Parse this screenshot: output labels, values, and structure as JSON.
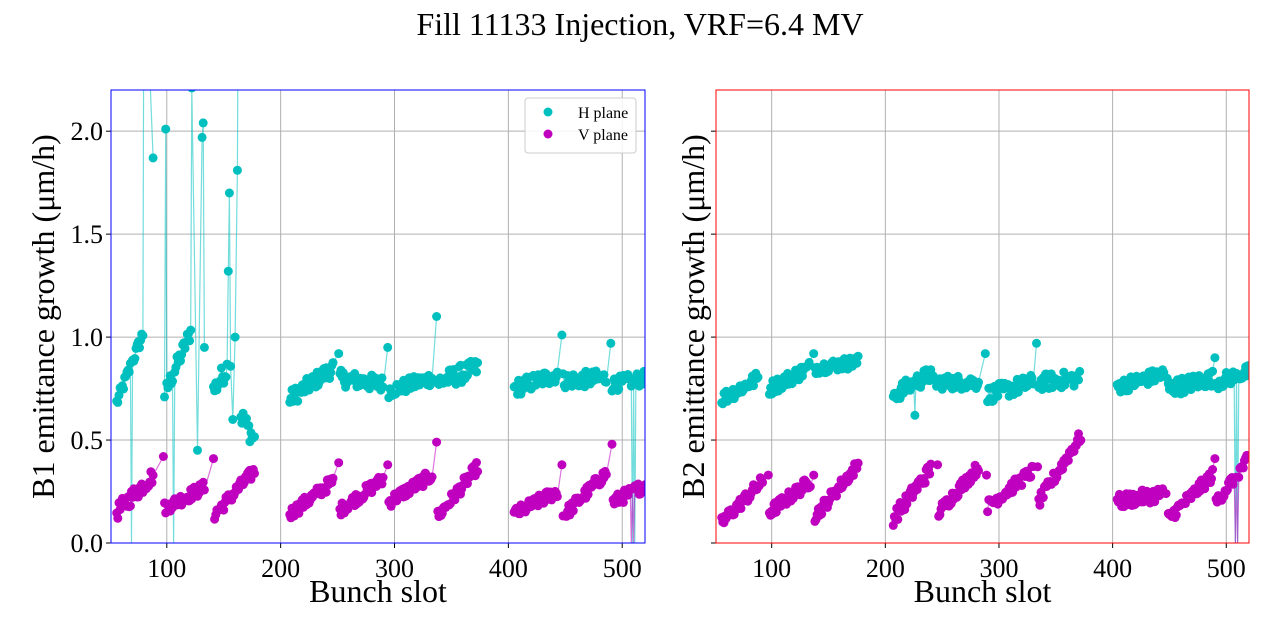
{
  "chart_data": {
    "title": "Fill 11133 Injection, VRF=6.4 MV",
    "panels": [
      {
        "id": "b1",
        "type": "line",
        "xlabel": "Bunch slot",
        "ylabel": "B1 emittance growth (μm/h)",
        "xlim": [
          51,
          520
        ],
        "ylim": [
          0.0,
          2.2
        ],
        "xticks": [
          100,
          200,
          300,
          400,
          500
        ],
        "yticks": [
          0.0,
          0.5,
          1.0,
          1.5,
          2.0
        ],
        "ytick_labels": [
          "0.0",
          "0.5",
          "1.0",
          "1.5",
          "2.0"
        ],
        "show_ytick_labels": true,
        "grid": true,
        "frame_color": "#0000ff",
        "legend": {
          "position": "top-right",
          "entries": [
            "H plane",
            "V plane"
          ]
        },
        "series": [
          {
            "name": "H plane",
            "color": "#00bfbf",
            "trains": [
              {
                "start": 56,
                "end": 80,
                "v0": 0.68,
                "v1": 1.03,
                "noise": 0.03,
                "spikes": [
                  [
                    69,
                    0.0
                  ],
                  [
                    80,
                    3.0
                  ],
                  [
                    88,
                    1.87
                  ]
                ]
              },
              {
                "start": 98,
                "end": 122,
                "v0": 0.72,
                "v1": 1.04,
                "noise": 0.04,
                "spikes": [
                  [
                    99,
                    2.01
                  ],
                  [
                    106,
                    0.0
                  ],
                  [
                    122,
                    2.21
                  ],
                  [
                    127,
                    0.45
                  ],
                  [
                    131,
                    1.97
                  ],
                  [
                    132,
                    2.04
                  ],
                  [
                    133,
                    0.95
                  ]
                ]
              },
              {
                "start": 141,
                "end": 156,
                "v0": 0.74,
                "v1": 0.88,
                "noise": 0.05,
                "spikes": [
                  [
                    154,
                    1.32
                  ],
                  [
                    155,
                    1.7
                  ],
                  [
                    158,
                    0.6
                  ],
                  [
                    160,
                    1.0
                  ],
                  [
                    162,
                    1.81
                  ],
                  [
                    163,
                    3.0
                  ]
                ]
              },
              {
                "start": 165,
                "end": 177,
                "v0": 0.62,
                "v1": 0.5,
                "noise": 0.05,
                "spikes": []
              },
              {
                "start": 208,
                "end": 246,
                "v0": 0.7,
                "v1": 0.85,
                "noise": 0.04,
                "spikes": [
                  [
                    251,
                    0.92
                  ]
                ]
              },
              {
                "start": 252,
                "end": 290,
                "v0": 0.8,
                "v1": 0.77,
                "noise": 0.04,
                "spikes": [
                  [
                    294,
                    0.95
                  ]
                ]
              },
              {
                "start": 295,
                "end": 333,
                "v0": 0.74,
                "v1": 0.8,
                "noise": 0.035,
                "spikes": [
                  [
                    337,
                    1.1
                  ]
                ]
              },
              {
                "start": 338,
                "end": 373,
                "v0": 0.78,
                "v1": 0.85,
                "noise": 0.045,
                "spikes": []
              },
              {
                "start": 405,
                "end": 443,
                "v0": 0.75,
                "v1": 0.82,
                "noise": 0.04,
                "spikes": [
                  [
                    447,
                    1.01
                  ]
                ]
              },
              {
                "start": 448,
                "end": 486,
                "v0": 0.79,
                "v1": 0.8,
                "noise": 0.04,
                "spikes": [
                  [
                    490,
                    0.97
                  ]
                ]
              },
              {
                "start": 491,
                "end": 520,
                "v0": 0.77,
                "v1": 0.8,
                "noise": 0.035,
                "spikes": [
                  [
                    509,
                    0.0
                  ],
                  [
                    511,
                    0.0
                  ]
                ]
              }
            ]
          },
          {
            "name": "V plane",
            "color": "#bf00bf",
            "trains": [
              {
                "start": 56,
                "end": 88,
                "v0": 0.15,
                "v1": 0.33,
                "noise": 0.04,
                "spikes": [
                  [
                    97,
                    0.42
                  ]
                ]
              },
              {
                "start": 98,
                "end": 133,
                "v0": 0.17,
                "v1": 0.27,
                "noise": 0.03,
                "spikes": [
                  [
                    141,
                    0.41
                  ]
                ]
              },
              {
                "start": 142,
                "end": 177,
                "v0": 0.14,
                "v1": 0.35,
                "noise": 0.03,
                "spikes": []
              },
              {
                "start": 208,
                "end": 246,
                "v0": 0.14,
                "v1": 0.3,
                "noise": 0.03,
                "spikes": [
                  [
                    251,
                    0.39
                  ]
                ]
              },
              {
                "start": 252,
                "end": 290,
                "v0": 0.16,
                "v1": 0.31,
                "noise": 0.03,
                "spikes": [
                  [
                    294,
                    0.38
                  ]
                ]
              },
              {
                "start": 295,
                "end": 333,
                "v0": 0.2,
                "v1": 0.33,
                "noise": 0.03,
                "spikes": [
                  [
                    337,
                    0.49
                  ]
                ]
              },
              {
                "start": 338,
                "end": 373,
                "v0": 0.13,
                "v1": 0.37,
                "noise": 0.03,
                "spikes": []
              },
              {
                "start": 405,
                "end": 443,
                "v0": 0.14,
                "v1": 0.25,
                "noise": 0.03,
                "spikes": [
                  [
                    447,
                    0.38
                  ]
                ]
              },
              {
                "start": 448,
                "end": 486,
                "v0": 0.13,
                "v1": 0.34,
                "noise": 0.03,
                "spikes": [
                  [
                    491,
                    0.48
                  ]
                ]
              },
              {
                "start": 492,
                "end": 520,
                "v0": 0.2,
                "v1": 0.28,
                "noise": 0.03,
                "spikes": [
                  [
                    508,
                    0.0
                  ],
                  [
                    510,
                    0.0
                  ]
                ]
              }
            ]
          }
        ]
      },
      {
        "id": "b2",
        "type": "line",
        "xlabel": "Bunch slot",
        "ylabel": "B2 emittance growth (μm/h)",
        "xlim": [
          51,
          520
        ],
        "ylim": [
          0.0,
          2.2
        ],
        "xticks": [
          100,
          200,
          300,
          400,
          500
        ],
        "yticks": [
          0.0,
          0.5,
          1.0,
          1.5,
          2.0
        ],
        "ytick_labels": [
          "",
          "",
          "",
          "",
          ""
        ],
        "show_ytick_labels": false,
        "grid": true,
        "frame_color": "#ff0000",
        "legend": null,
        "series": [
          {
            "name": "H plane",
            "color": "#00bfbf",
            "trains": [
              {
                "start": 56,
                "end": 88,
                "v0": 0.7,
                "v1": 0.8,
                "noise": 0.035,
                "spikes": []
              },
              {
                "start": 98,
                "end": 133,
                "v0": 0.75,
                "v1": 0.85,
                "noise": 0.035,
                "spikes": [
                  [
                    137,
                    0.92
                  ]
                ]
              },
              {
                "start": 138,
                "end": 176,
                "v0": 0.85,
                "v1": 0.88,
                "noise": 0.03,
                "spikes": []
              },
              {
                "start": 207,
                "end": 240,
                "v0": 0.72,
                "v1": 0.82,
                "noise": 0.04,
                "spikes": [
                  [
                    226,
                    0.62
                  ]
                ]
              },
              {
                "start": 242,
                "end": 282,
                "v0": 0.78,
                "v1": 0.78,
                "noise": 0.035,
                "spikes": [
                  [
                    288,
                    0.92
                  ]
                ]
              },
              {
                "start": 290,
                "end": 330,
                "v0": 0.72,
                "v1": 0.78,
                "noise": 0.04,
                "spikes": [
                  [
                    333,
                    0.97
                  ]
                ]
              },
              {
                "start": 335,
                "end": 371,
                "v0": 0.78,
                "v1": 0.8,
                "noise": 0.04,
                "spikes": []
              },
              {
                "start": 404,
                "end": 445,
                "v0": 0.76,
                "v1": 0.82,
                "noise": 0.035,
                "spikes": [
                  [
                    448,
                    0.8
                  ]
                ]
              },
              {
                "start": 449,
                "end": 488,
                "v0": 0.75,
                "v1": 0.8,
                "noise": 0.04,
                "spikes": [
                  [
                    490,
                    0.9
                  ]
                ]
              },
              {
                "start": 491,
                "end": 520,
                "v0": 0.78,
                "v1": 0.83,
                "noise": 0.035,
                "spikes": [
                  [
                    508,
                    0.0
                  ],
                  [
                    510,
                    0.0
                  ]
                ]
              }
            ]
          },
          {
            "name": "V plane",
            "color": "#bf00bf",
            "trains": [
              {
                "start": 56,
                "end": 92,
                "v0": 0.1,
                "v1": 0.3,
                "noise": 0.03,
                "spikes": [
                  [
                    97,
                    0.33
                  ]
                ]
              },
              {
                "start": 98,
                "end": 134,
                "v0": 0.15,
                "v1": 0.3,
                "noise": 0.03,
                "spikes": [
                  [
                    137,
                    0.33
                  ]
                ]
              },
              {
                "start": 138,
                "end": 176,
                "v0": 0.13,
                "v1": 0.38,
                "noise": 0.03,
                "spikes": []
              },
              {
                "start": 207,
                "end": 240,
                "v0": 0.12,
                "v1": 0.36,
                "noise": 0.035,
                "spikes": [
                  [
                    246,
                    0.38
                  ]
                ]
              },
              {
                "start": 247,
                "end": 282,
                "v0": 0.15,
                "v1": 0.37,
                "noise": 0.03,
                "spikes": [
                  [
                    289,
                    0.33
                  ]
                ]
              },
              {
                "start": 290,
                "end": 330,
                "v0": 0.18,
                "v1": 0.35,
                "noise": 0.03,
                "spikes": [
                  [
                    334,
                    0.37
                  ]
                ]
              },
              {
                "start": 335,
                "end": 372,
                "v0": 0.2,
                "v1": 0.52,
                "noise": 0.03,
                "spikes": []
              },
              {
                "start": 404,
                "end": 444,
                "v0": 0.2,
                "v1": 0.24,
                "noise": 0.035,
                "spikes": [
                  [
                    447,
                    0.24
                  ]
                ]
              },
              {
                "start": 449,
                "end": 488,
                "v0": 0.12,
                "v1": 0.33,
                "noise": 0.03,
                "spikes": [
                  [
                    490,
                    0.41
                  ]
                ]
              },
              {
                "start": 491,
                "end": 520,
                "v0": 0.2,
                "v1": 0.41,
                "noise": 0.03,
                "spikes": [
                  [
                    508,
                    0.0
                  ],
                  [
                    510,
                    0.0
                  ]
                ]
              }
            ]
          }
        ]
      }
    ]
  }
}
